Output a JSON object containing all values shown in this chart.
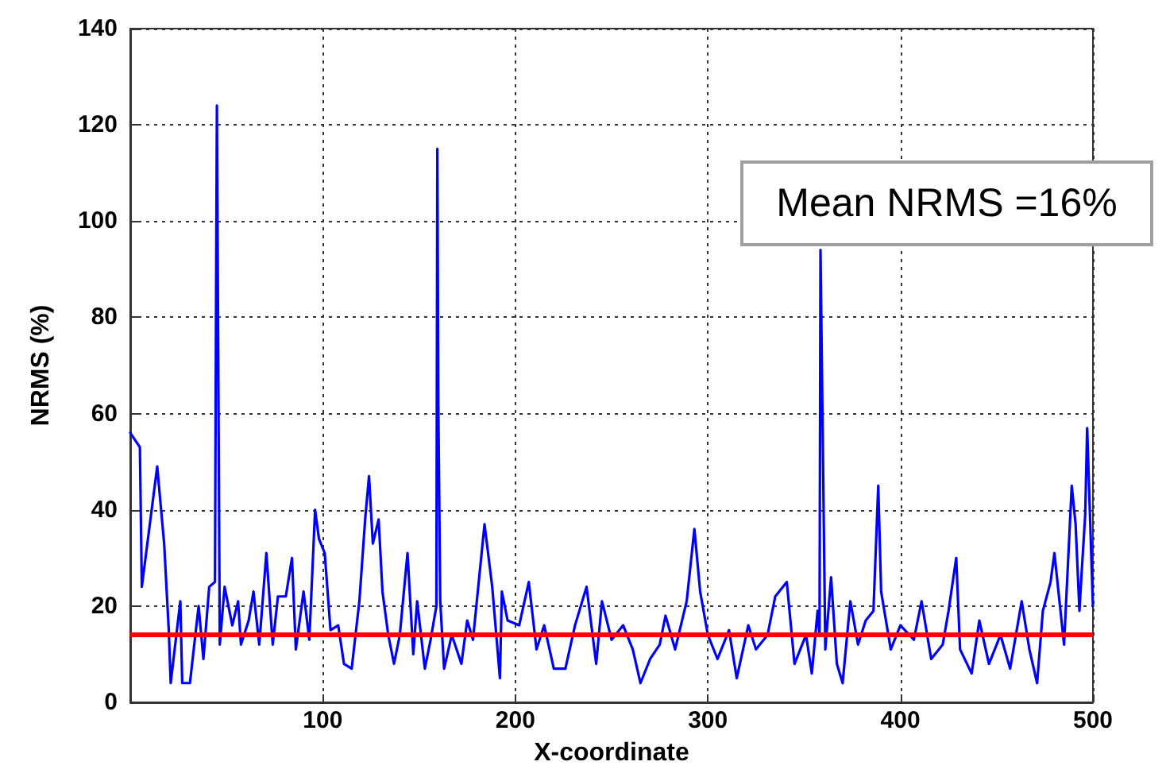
{
  "chart_data": {
    "type": "line",
    "xlabel": "X-coordinate",
    "ylabel": "NRMS (%)",
    "annotations": [
      "Mean NRMS =16%"
    ],
    "xlim": [
      0,
      500
    ],
    "xticks": [
      100,
      200,
      300,
      400,
      500
    ],
    "ylim": [
      0,
      140
    ],
    "yticks": [
      0,
      20,
      40,
      60,
      80,
      100,
      120,
      140
    ],
    "grid": true,
    "line_style": "solid",
    "ref_lines": [
      {
        "axis": "y",
        "value": 14,
        "color": "#ff0000"
      }
    ],
    "series": [
      {
        "color": "#0000ff",
        "x": [
          0,
          5,
          6,
          14,
          17.6,
          20,
          21,
          26,
          27,
          31,
          35.5,
          38,
          41,
          44,
          44.5,
          45,
          46.5,
          49,
          53,
          56,
          57.5,
          61.5,
          64,
          67,
          70.7,
          74,
          76.7,
          80.8,
          84,
          86,
          90,
          93,
          96,
          98,
          101,
          104,
          108,
          111,
          115,
          119,
          122,
          124,
          126,
          129,
          131,
          134,
          137,
          140,
          144,
          147,
          149,
          153,
          156,
          159,
          159.5,
          160,
          161,
          163,
          167,
          172,
          175,
          178,
          184,
          188,
          192,
          193,
          196,
          202,
          207,
          211,
          215,
          220,
          226,
          231,
          237,
          242,
          245,
          250,
          256,
          261,
          265,
          270,
          275,
          278,
          283,
          289,
          293,
          296,
          300,
          305,
          311,
          315,
          321,
          325,
          331,
          335,
          341,
          345,
          351,
          354,
          357,
          358,
          358.5,
          359.5,
          361,
          364,
          367,
          370,
          374,
          378,
          382,
          386,
          388.5,
          390,
          395,
          400,
          407,
          411,
          416,
          422,
          425,
          429,
          431,
          437,
          441,
          446,
          452,
          457,
          463,
          467,
          471,
          474,
          478,
          480,
          485,
          489,
          491,
          493,
          494,
          496,
          497,
          500
        ],
        "values": [
          56,
          53,
          24,
          49,
          33,
          15,
          4,
          21,
          4,
          4,
          20,
          9,
          24,
          25,
          77,
          124,
          12,
          24,
          16,
          21,
          12,
          17,
          23,
          12,
          31,
          12,
          22,
          22,
          30,
          11,
          23,
          13,
          40,
          34,
          31,
          15,
          16,
          8,
          7,
          21,
          38,
          47,
          33,
          38,
          23,
          14,
          8,
          14,
          31,
          10,
          21,
          7,
          13,
          20,
          115,
          62,
          21,
          7,
          14,
          8,
          17,
          13,
          37,
          24,
          5,
          23,
          17,
          16,
          25,
          11,
          16,
          7,
          7,
          16,
          24,
          8,
          21,
          13,
          16,
          11,
          4,
          9,
          12,
          18,
          11,
          21,
          36,
          23,
          14,
          9,
          15,
          5,
          16,
          11,
          14,
          22,
          25,
          8,
          14,
          6,
          19,
          14,
          94,
          61,
          11,
          26,
          8,
          4,
          21,
          12,
          17,
          19,
          45,
          23,
          11,
          16,
          13,
          21,
          9,
          12,
          19,
          30,
          11,
          6,
          17,
          8,
          14,
          7,
          21,
          11,
          4,
          19,
          25,
          31,
          12,
          45,
          37,
          19,
          26,
          39,
          57,
          20
        ]
      }
    ]
  }
}
